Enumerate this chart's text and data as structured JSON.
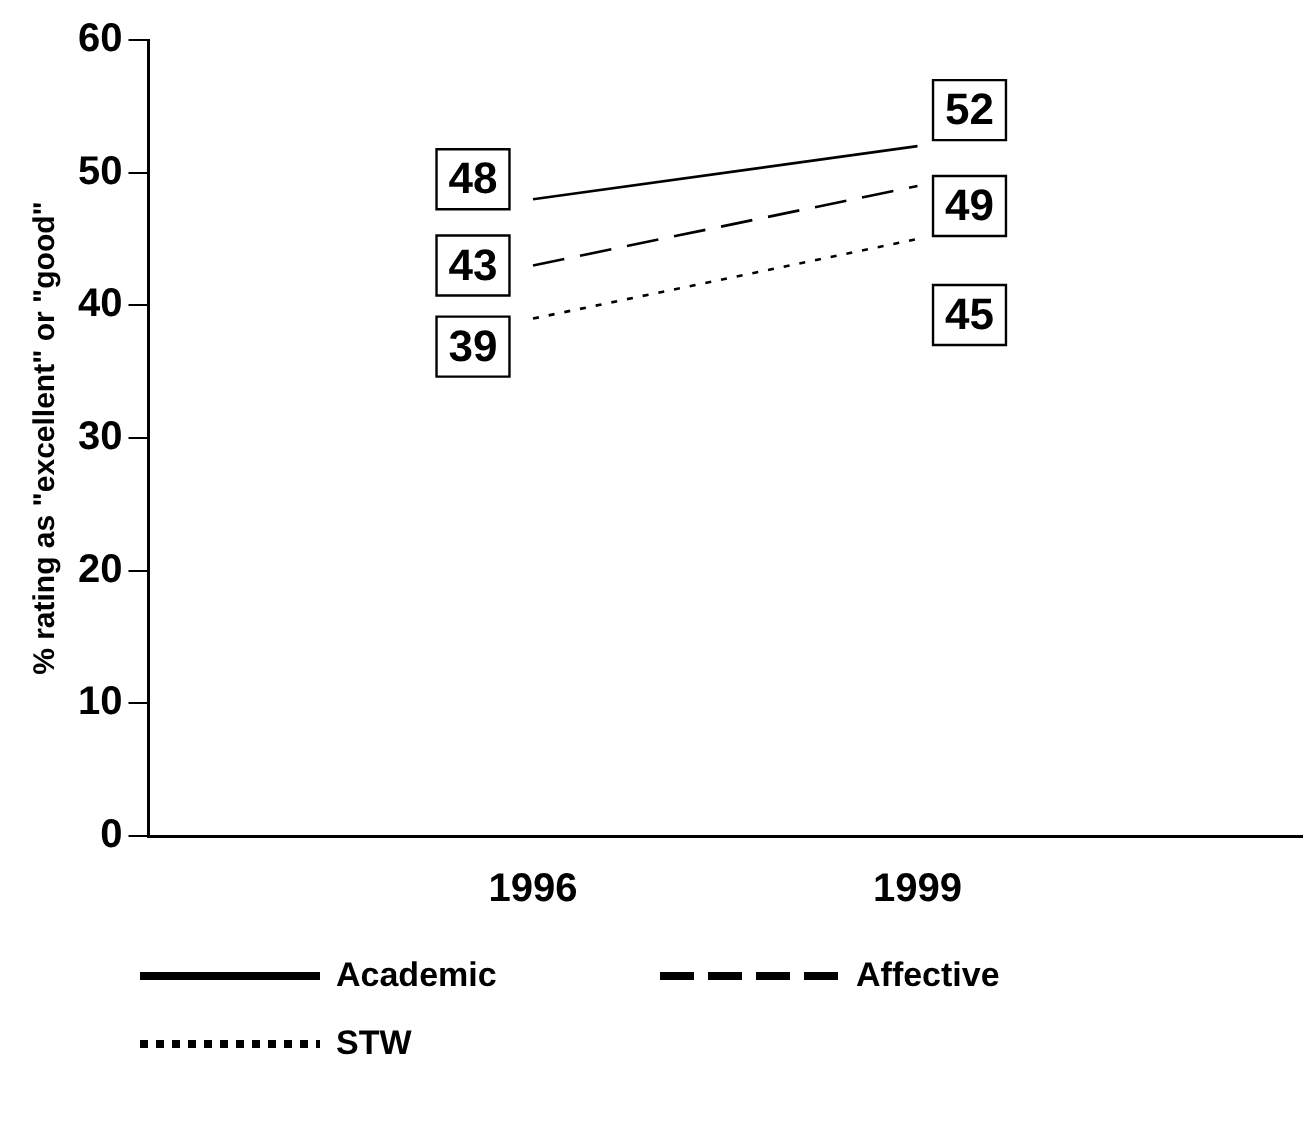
{
  "chart_data": {
    "type": "line",
    "ylabel": "% rating as \"excellent\" or \"good\"",
    "categories": [
      null,
      null,
      "1996",
      null,
      "1999",
      null,
      null
    ],
    "series": [
      {
        "name": "Academic",
        "color": "#000000",
        "line_style": "solid",
        "values": [
          null,
          null,
          48,
          null,
          52,
          null,
          null
        ]
      },
      {
        "name": "Affective",
        "color": "#000000",
        "line_style": "dashed",
        "values": [
          null,
          null,
          43,
          null,
          49,
          null,
          null
        ]
      },
      {
        "name": "STW",
        "color": "#000000",
        "line_style": "dotted",
        "values": [
          null,
          null,
          39,
          null,
          45,
          null,
          null
        ]
      }
    ],
    "ylim": [
      0,
      60
    ],
    "yticks": [
      0,
      10,
      20,
      30,
      40,
      50,
      60
    ],
    "grid": false,
    "legend": "bottom",
    "marker": "none",
    "data_labels": true
  }
}
